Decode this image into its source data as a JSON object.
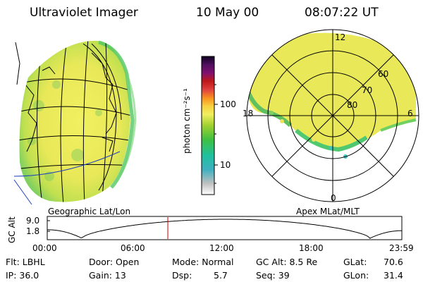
{
  "header": {
    "instrument": "Ultraviolet Imager",
    "date": "10 May 00",
    "time": "08:07:22 UT"
  },
  "colorbar": {
    "unit_label": "photon cm⁻²s⁻¹",
    "ticks": [
      "100",
      "10"
    ]
  },
  "polar_plot": {
    "mlt_labels": [
      "12",
      "18",
      "6",
      "0"
    ],
    "lat_labels": [
      "60",
      "70",
      "80"
    ]
  },
  "panel_labels": {
    "left": "Geographic Lat/Lon",
    "right": "Apex MLat/MLT"
  },
  "alt_plot": {
    "ylabel": "GC Alt",
    "yticks": [
      "9.0",
      "1.8"
    ],
    "xticks": [
      "00:00",
      "06:00",
      "12:00",
      "18:00",
      "23:59"
    ],
    "current_time_fraction": 0.34
  },
  "status": {
    "flt": "Flt: LBHL",
    "door": "Door: Open",
    "mode": "Mode: Normal",
    "gc_alt": "GC Alt: 8.5 Re",
    "glat": "GLat:",
    "glat_value": "70.6",
    "ip": "IP: 36.0",
    "gain": "Gain: 13",
    "dsp": "Dsp:",
    "dsp_value": "5.7",
    "seq": "Seq: 39",
    "glon": "GLon:",
    "glon_value": "31.4"
  },
  "colors": {
    "dominant_emission": "#e0e050",
    "edge_emission": "#40c0c0",
    "low_emission": "#60d060"
  }
}
